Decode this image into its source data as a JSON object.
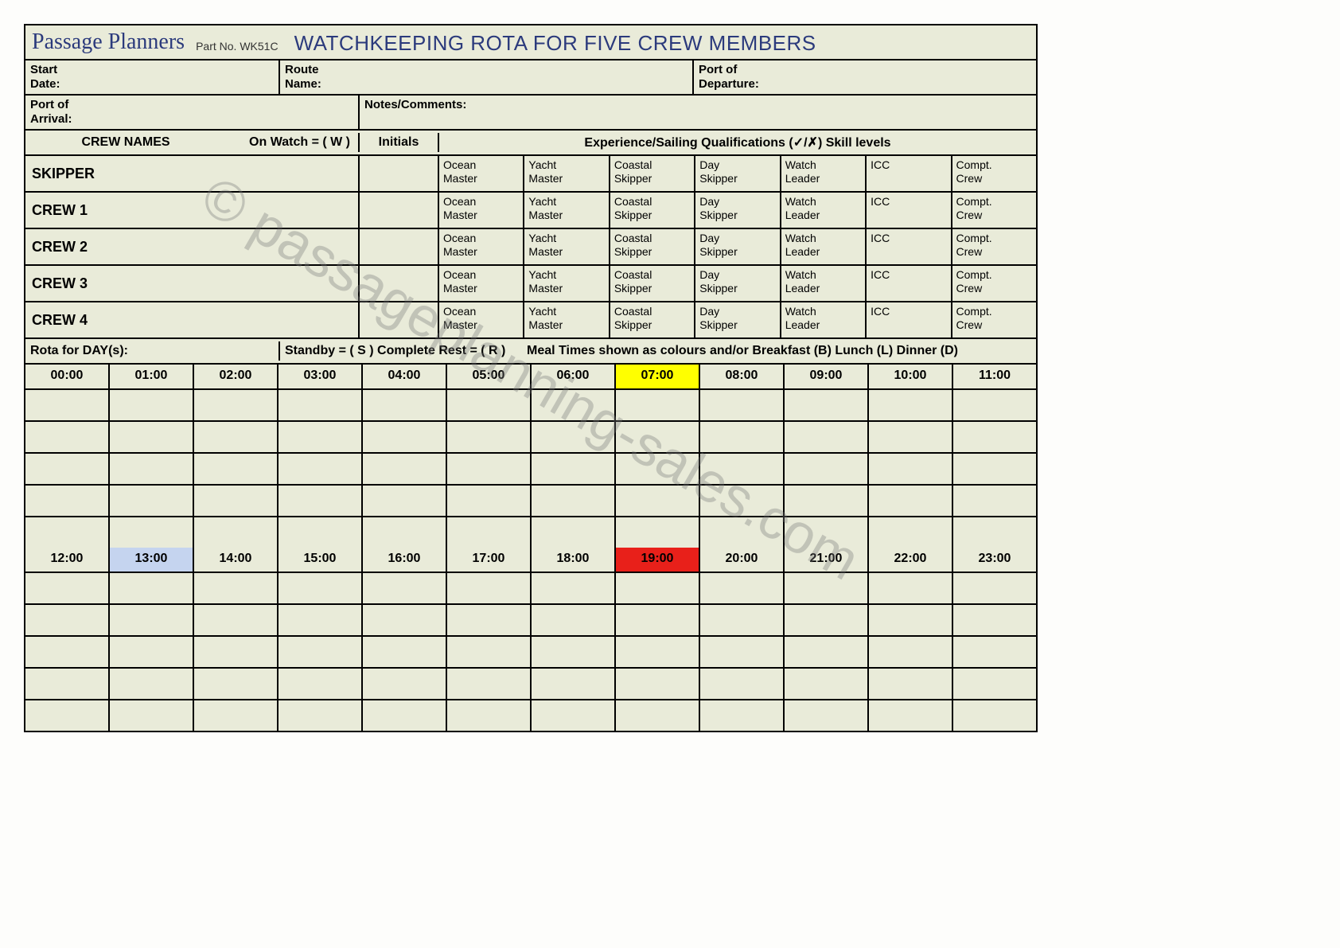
{
  "title": {
    "brand": "Passage Planners",
    "partNo": "Part No. WK51C",
    "main": "WATCHKEEPING ROTA FOR FIVE CREW MEMBERS"
  },
  "form": {
    "startDate": "Start\nDate:",
    "routeName": "Route\nName:",
    "portDeparture": "Port of\nDeparture:",
    "portArrival": "Port of\nArrival:",
    "notes": "Notes/Comments:"
  },
  "crewHeader": {
    "crewNames": "CREW NAMES",
    "onWatch": "On Watch = ( W )",
    "initials": "Initials",
    "experience": "Experience/Sailing Qualifications (✓/✗)  Skill levels"
  },
  "quals": [
    "Ocean Master",
    "Yacht Master",
    "Coastal Skipper",
    "Day Skipper",
    "Watch Leader",
    "ICC",
    "Compt. Crew"
  ],
  "crew": [
    "SKIPPER",
    "CREW 1",
    "CREW 2",
    "CREW 3",
    "CREW 4"
  ],
  "rotaHeader": {
    "left": "Rota for DAY(s):",
    "mid": "Standby = ( S ) Complete Rest = ( R )",
    "right": "Meal Times shown as colours and/or   Breakfast (B)     Lunch (L)     Dinner (D)"
  },
  "hoursAM": [
    "00:00",
    "01:00",
    "02:00",
    "03:00",
    "04:00",
    "05:00",
    "06:00",
    "07:00",
    "08:00",
    "09:00",
    "10:00",
    "11:00"
  ],
  "hoursPM": [
    "12:00",
    "13:00",
    "14:00",
    "15:00",
    "16:00",
    "17:00",
    "18:00",
    "19:00",
    "20:00",
    "21:00",
    "22:00",
    "23:00"
  ],
  "highlightAM": {
    "index": 7,
    "color": "#ffff00"
  },
  "highlightPM": [
    {
      "index": 1,
      "color": "#c5d4ef"
    },
    {
      "index": 7,
      "color": "#e8201a"
    }
  ],
  "gridRows": 5,
  "watermark": "© passageplanning-sales.com",
  "colors": {
    "bg": "#e9ebd9",
    "border": "#000000",
    "titleText": "#2b3a7c"
  }
}
